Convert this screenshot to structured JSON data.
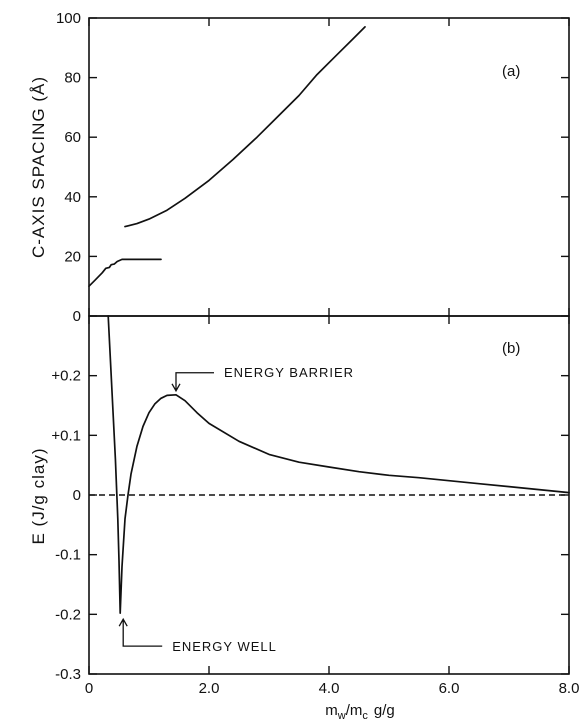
{
  "chart_data": [
    {
      "type": "line",
      "panel_label": "(a)",
      "ylabel": "C-AXIS SPACING (Å)",
      "xlim": [
        0,
        8.0
      ],
      "ylim": [
        0,
        100
      ],
      "yticks": [
        0,
        20,
        40,
        60,
        80,
        100
      ],
      "ytick_labels": [
        "0",
        "20",
        "40",
        "60",
        "80",
        "100"
      ],
      "series": [
        {
          "points": [
            [
              0.0,
              10
            ],
            [
              0.1,
              12
            ],
            [
              0.22,
              14.5
            ],
            [
              0.28,
              16
            ],
            [
              0.34,
              16.3
            ],
            [
              0.37,
              17.2
            ],
            [
              0.42,
              17.4
            ],
            [
              0.47,
              18.3
            ],
            [
              0.55,
              19
            ],
            [
              0.8,
              19
            ],
            [
              1.0,
              19
            ],
            [
              1.2,
              19
            ]
          ]
        },
        {
          "points": [
            [
              0.6,
              30
            ],
            [
              0.8,
              31
            ],
            [
              1.0,
              32.5
            ],
            [
              1.3,
              35.5
            ],
            [
              1.6,
              39.5
            ],
            [
              2.0,
              45.5
            ],
            [
              2.4,
              52.5
            ],
            [
              2.8,
              60
            ],
            [
              3.2,
              68
            ],
            [
              3.5,
              74
            ],
            [
              3.8,
              81
            ],
            [
              4.1,
              87
            ],
            [
              4.4,
              93
            ],
            [
              4.6,
              97
            ]
          ]
        }
      ]
    },
    {
      "type": "line",
      "panel_label": "(b)",
      "ylabel": "E (J/g clay)",
      "xlabel": "m_w/m_c   g/g",
      "xlim": [
        0,
        8.0
      ],
      "ylim": [
        -0.3,
        0.3
      ],
      "xticks": [
        0,
        2.0,
        4.0,
        6.0,
        8.0
      ],
      "xtick_labels": [
        "0",
        "2.0",
        "4.0",
        "6.0",
        "8.0"
      ],
      "yticks": [
        -0.3,
        -0.2,
        -0.1,
        0,
        0.1,
        0.2
      ],
      "ytick_labels": [
        "-0.3",
        "-0.2",
        "-0.1",
        "0",
        "+0.1",
        "+0.2"
      ],
      "reference_line": {
        "y": 0,
        "style": "dashed"
      },
      "annotations": [
        {
          "text": "ENERGY BARRIER",
          "x": 1.45,
          "y": 0.168
        },
        {
          "text": "ENERGY WELL",
          "x": 0.52,
          "y": -0.198
        }
      ],
      "series": [
        {
          "points": [
            [
              0.32,
              0.3
            ],
            [
              0.36,
              0.22
            ],
            [
              0.4,
              0.14
            ],
            [
              0.44,
              0.06
            ],
            [
              0.48,
              -0.04
            ],
            [
              0.5,
              -0.11
            ],
            [
              0.52,
              -0.198
            ],
            [
              0.55,
              -0.12
            ],
            [
              0.6,
              -0.04
            ],
            [
              0.65,
              0.0
            ],
            [
              0.7,
              0.035
            ],
            [
              0.8,
              0.082
            ],
            [
              0.9,
              0.115
            ],
            [
              1.0,
              0.138
            ],
            [
              1.1,
              0.153
            ],
            [
              1.2,
              0.162
            ],
            [
              1.3,
              0.167
            ],
            [
              1.45,
              0.168
            ],
            [
              1.6,
              0.158
            ],
            [
              1.8,
              0.138
            ],
            [
              2.0,
              0.12
            ],
            [
              2.5,
              0.09
            ],
            [
              3.0,
              0.068
            ],
            [
              3.5,
              0.055
            ],
            [
              4.0,
              0.047
            ],
            [
              4.5,
              0.039
            ],
            [
              5.0,
              0.033
            ],
            [
              5.5,
              0.029
            ],
            [
              6.0,
              0.024
            ],
            [
              6.5,
              0.019
            ],
            [
              7.0,
              0.014
            ],
            [
              7.5,
              0.009
            ],
            [
              8.0,
              0.004
            ]
          ]
        }
      ]
    }
  ]
}
